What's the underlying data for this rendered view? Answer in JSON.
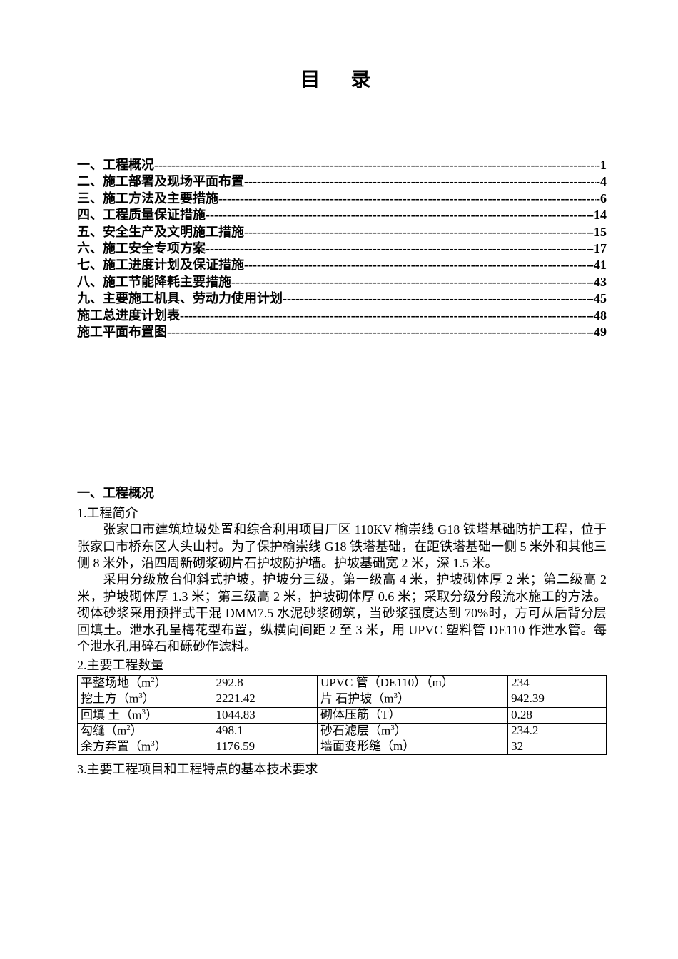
{
  "title": "目  录",
  "toc": [
    {
      "label": "一、工程概况",
      "page": "1"
    },
    {
      "label": "二、施工部署及现场平面布置",
      "page": "4"
    },
    {
      "label": "三、施工方法及主要措施",
      "page": "6"
    },
    {
      "label": "四、工程质量保证措施",
      "page": "14"
    },
    {
      "label": "五、安全生产及文明施工措施",
      "page": "15"
    },
    {
      "label": "六、施工安全专项方案",
      "page": "17"
    },
    {
      "label": "七、施工进度计划及保证措施",
      "page": "41"
    },
    {
      "label": "八、施工节能降耗主要措施",
      "page": "43"
    },
    {
      "label": "九、主要施工机具、劳动力使用计划",
      "page": "45"
    },
    {
      "label": "施工总进度计划表",
      "page": "48"
    },
    {
      "label": "施工平面布置图",
      "page": "49"
    }
  ],
  "section1": {
    "heading": "一、工程概况",
    "sub1": "1.工程简介",
    "para1": "张家口市建筑垃圾处置和综合利用项目厂区 110KV 榆崇线 G18 铁塔基础防护工程，位于张家口市桥东区人头山村。为了保护榆崇线 G18 铁塔基础，在距铁塔基础一侧 5 米外和其他三侧 8 米外，沿四周新砌浆砌片石护坡防护墙。护坡基础宽 2 米，深 1.5 米。",
    "para2": "采用分级放台仰斜式护坡，护坡分三级，第一级高 4 米，护坡砌体厚 2 米；第二级高 2 米，护坡砌体厚 1.3 米；第三级高 2 米，护坡砌体厚 0.6 米；采取分级分段流水施工的方法。砌体砂浆采用预拌式干混 DMM7.5 水泥砂浆砌筑，当砂浆强度达到 70%时，方可从后背分层回填土。泄水孔呈梅花型布置，纵横向间距 2 至 3 米，用 UPVC 塑料管 DE110 作泄水管。每个泄水孔用碎石和砾砂作滤料。",
    "sub2": "2.主要工程数量",
    "table": {
      "rows": [
        {
          "c1_pre": "平整场地（m",
          "c1_sup": "2",
          "c1_post": "）",
          "c2": "292.8",
          "c3_pre": "UPVC 管（DE110）（m）",
          "c3_sup": "",
          "c3_post": "",
          "c4": "234"
        },
        {
          "c1_pre": "挖土方（m",
          "c1_sup": "3",
          "c1_post": "）",
          "c2": "2221.42",
          "c3_pre": "片 石护坡（m",
          "c3_sup": "3",
          "c3_post": "）",
          "c4": "942.39"
        },
        {
          "c1_pre": "回填 土（m",
          "c1_sup": "3",
          "c1_post": "）",
          "c2": "1044.83",
          "c3_pre": "砌体压筋（T）",
          "c3_sup": "",
          "c3_post": "",
          "c4": "0.28"
        },
        {
          "c1_pre": "勾缝（m",
          "c1_sup": "2",
          "c1_post": "）",
          "c2": "498.1",
          "c3_pre": "砂石滤层（m",
          "c3_sup": "3",
          "c3_post": "）",
          "c4": "234.2"
        },
        {
          "c1_pre": "余方弃置（m",
          "c1_sup": "3",
          "c1_post": "）",
          "c2": "1176.59",
          "c3_pre": "墙面变形缝（m）",
          "c3_sup": "",
          "c3_post": "",
          "c4": "32"
        }
      ]
    },
    "sub3": "3.主要工程项目和工程特点的基本技术要求"
  },
  "dashes": "----------------------------------------------------------------------------------------------------------------------------"
}
